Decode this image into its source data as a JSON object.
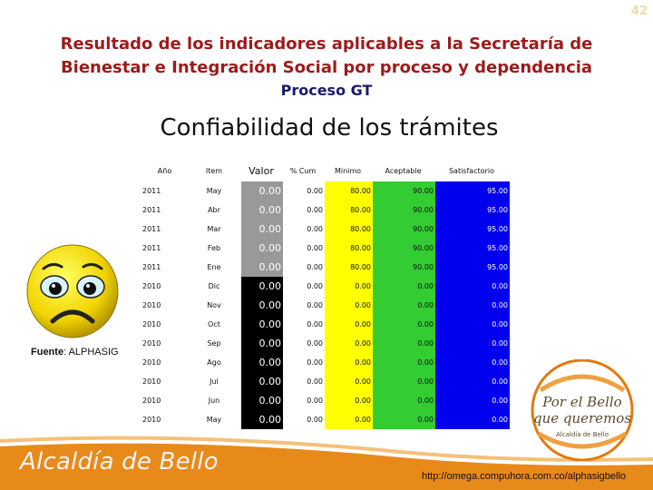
{
  "page_number": "42",
  "header": {
    "line1": "Resultado de los indicadores aplicables a la Secretaría de",
    "line2": "Bienestar e Integración Social por proceso y dependencia",
    "subtitle": "Proceso GT"
  },
  "indicator_title": "Confiabilidad de los trámites",
  "table": {
    "columns": [
      "Año",
      "Item",
      "Valor",
      "% Cum",
      "Minimo",
      "Aceptable",
      "Satisfactorio"
    ],
    "rows": [
      {
        "ano": "2011",
        "item": "May",
        "valor": "0.00",
        "cum": "0.00",
        "min": "80.00",
        "acep": "90.00",
        "sat": "95.00"
      },
      {
        "ano": "2011",
        "item": "Abr",
        "valor": "0.00",
        "cum": "0.00",
        "min": "80.00",
        "acep": "90.00",
        "sat": "95.00"
      },
      {
        "ano": "2011",
        "item": "Mar",
        "valor": "0.00",
        "cum": "0.00",
        "min": "80.00",
        "acep": "90.00",
        "sat": "95.00"
      },
      {
        "ano": "2011",
        "item": "Feb",
        "valor": "0.00",
        "cum": "0.00",
        "min": "80.00",
        "acep": "90.00",
        "sat": "95.00"
      },
      {
        "ano": "2011",
        "item": "Ene",
        "valor": "0.00",
        "cum": "0.00",
        "min": "80.00",
        "acep": "90.00",
        "sat": "95.00"
      },
      {
        "ano": "2010",
        "item": "Dic",
        "valor": "0.00",
        "cum": "0.00",
        "min": "0.00",
        "acep": "0.00",
        "sat": "0.00"
      },
      {
        "ano": "2010",
        "item": "Nov",
        "valor": "0.00",
        "cum": "0.00",
        "min": "0.00",
        "acep": "0.00",
        "sat": "0.00"
      },
      {
        "ano": "2010",
        "item": "Oct",
        "valor": "0.00",
        "cum": "0.00",
        "min": "0.00",
        "acep": "0.00",
        "sat": "0.00"
      },
      {
        "ano": "2010",
        "item": "Sep",
        "valor": "0.00",
        "cum": "0.00",
        "min": "0.00",
        "acep": "0.00",
        "sat": "0.00"
      },
      {
        "ano": "2010",
        "item": "Ago",
        "valor": "0.00",
        "cum": "0.00",
        "min": "0.00",
        "acep": "0.00",
        "sat": "0.00"
      },
      {
        "ano": "2010",
        "item": "Jul",
        "valor": "0.00",
        "cum": "0.00",
        "min": "0.00",
        "acep": "0.00",
        "sat": "0.00"
      },
      {
        "ano": "2010",
        "item": "Jun",
        "valor": "0.00",
        "cum": "0.00",
        "min": "0.00",
        "acep": "0.00",
        "sat": "0.00"
      },
      {
        "ano": "2010",
        "item": "May",
        "valor": "0.00",
        "cum": "0.00",
        "min": "0.00",
        "acep": "0.00",
        "sat": "0.00"
      }
    ]
  },
  "colors": {
    "valor_2011": "#999999",
    "valor_2010": "#000000",
    "minimo": "#ffff00",
    "aceptable": "#33cc33",
    "satisfactorio": "#0000ee",
    "header_red": "#9b1b1b",
    "subtitle_blue": "#1a1a6e",
    "band_orange": "#e88a1a"
  },
  "source_note": {
    "label": "Fuente",
    "value": ": ALPHASIG"
  },
  "footer": {
    "brand": "Alcaldía de Bello",
    "url": "http://omega.compuhora.com.co/alphasigbello"
  },
  "logo": {
    "line1": "Por el Bello",
    "line2": "que queremos",
    "line3": "Alcaldía de Bello"
  },
  "icons": {
    "face": "sad-face-icon",
    "logo": "bello-logo-icon"
  }
}
